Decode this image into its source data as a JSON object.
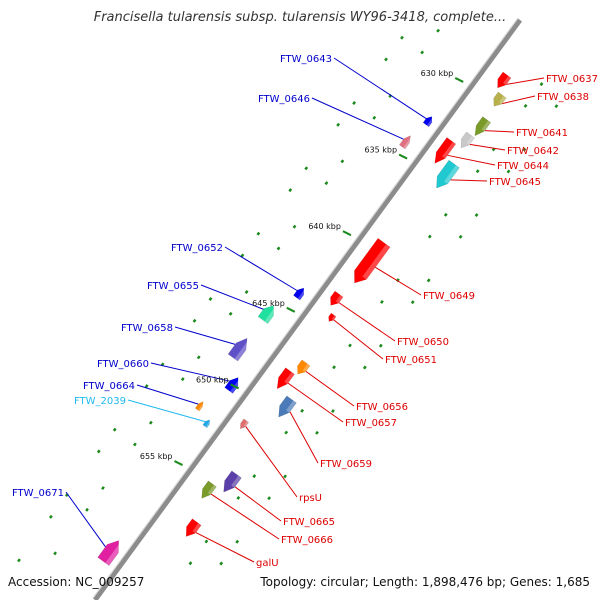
{
  "title": "Francisella tularensis subsp. tularensis WY96-3418, complete...",
  "accession_text": "Accession: NC_009257",
  "summary_text": "Topology: circular; Length: 1,898,476 bp; Genes: 1,685",
  "scale_ticks": [
    "630 kbp",
    "635 kbp",
    "640 kbp",
    "645 kbp",
    "650 kbp",
    "655 kbp"
  ],
  "genes": [
    {
      "id": "g0637",
      "label": "FTW_0637",
      "strand": "minus",
      "color": "#ff0000"
    },
    {
      "id": "g0638",
      "label": "FTW_0638",
      "strand": "minus",
      "color": "#b8b04a"
    },
    {
      "id": "g0641",
      "label": "FTW_0641",
      "strand": "minus",
      "color": "#7a9a2a"
    },
    {
      "id": "g0642",
      "label": "FTW_0642",
      "strand": "minus",
      "color": "#c8c8c8"
    },
    {
      "id": "g0644",
      "label": "FTW_0644",
      "strand": "minus",
      "color": "#ff0000"
    },
    {
      "id": "g0645",
      "label": "FTW_0645",
      "strand": "minus",
      "color": "#20c8d0"
    },
    {
      "id": "g0649",
      "label": "FTW_0649",
      "strand": "minus",
      "color": "#ff0000"
    },
    {
      "id": "g0650",
      "label": "FTW_0650",
      "strand": "minus",
      "color": "#ff0000"
    },
    {
      "id": "g0651",
      "label": "FTW_0651",
      "strand": "minus",
      "color": "#ff0000"
    },
    {
      "id": "g0656",
      "label": "FTW_0656",
      "strand": "minus",
      "color": "#ff8800"
    },
    {
      "id": "g0657",
      "label": "FTW_0657",
      "strand": "minus",
      "color": "#ff0000"
    },
    {
      "id": "g0659",
      "label": "FTW_0659",
      "strand": "minus",
      "color": "#4a7ab8"
    },
    {
      "id": "rpsU",
      "label": "rpsU",
      "strand": "minus",
      "color": "#e07070"
    },
    {
      "id": "g0665",
      "label": "FTW_0665",
      "strand": "minus",
      "color": "#5a40a8"
    },
    {
      "id": "g0666",
      "label": "FTW_0666",
      "strand": "minus",
      "color": "#7a9a2a"
    },
    {
      "id": "galU",
      "label": "galU",
      "strand": "minus",
      "color": "#ff0000"
    },
    {
      "id": "g0643",
      "label": "FTW_0643",
      "strand": "plus",
      "color": "#0000ee"
    },
    {
      "id": "g0646",
      "label": "FTW_0646",
      "strand": "plus",
      "color": "#e07080"
    },
    {
      "id": "g0652",
      "label": "FTW_0652",
      "strand": "plus",
      "color": "#0000ee"
    },
    {
      "id": "g0655",
      "label": "FTW_0655",
      "strand": "plus",
      "color": "#20e0a0"
    },
    {
      "id": "g0658",
      "label": "FTW_0658",
      "strand": "plus",
      "color": "#6050c8"
    },
    {
      "id": "g0660",
      "label": "FTW_0660",
      "strand": "plus",
      "color": "#0000ee"
    },
    {
      "id": "g0664",
      "label": "FTW_0664",
      "strand": "plus",
      "color": "#ff8800"
    },
    {
      "id": "g2039",
      "label": "FTW_2039",
      "strand": "plus",
      "color": "#20a8e8"
    },
    {
      "id": "g0671",
      "label": "FTW_0671",
      "strand": "plus",
      "color": "#e020a0"
    }
  ],
  "colors": {
    "minus_label": "#dd0000",
    "plus_label": "#0000cc",
    "rna_label": "#20b8f0",
    "backbone": "#909090",
    "gc_skew": "#1a8a1a"
  }
}
